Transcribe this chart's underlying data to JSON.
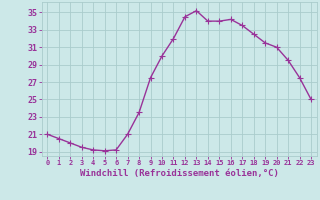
{
  "x": [
    0,
    1,
    2,
    3,
    4,
    5,
    6,
    7,
    8,
    9,
    10,
    11,
    12,
    13,
    14,
    15,
    16,
    17,
    18,
    19,
    20,
    21,
    22,
    23
  ],
  "y": [
    21.0,
    20.5,
    20.0,
    19.5,
    19.2,
    19.1,
    19.2,
    21.0,
    23.5,
    27.5,
    30.0,
    32.0,
    34.5,
    35.2,
    34.0,
    34.0,
    34.2,
    33.5,
    32.5,
    31.5,
    31.0,
    29.5,
    27.5,
    25.0
  ],
  "line_color": "#993399",
  "marker": "+",
  "marker_size": 4,
  "bg_color": "#cce8e8",
  "grid_color": "#aacccc",
  "xlabel": "Windchill (Refroidissement éolien,°C)",
  "ylabel_ticks": [
    19,
    21,
    23,
    25,
    27,
    29,
    31,
    33,
    35
  ],
  "xlim": [
    -0.5,
    23.5
  ],
  "ylim": [
    18.5,
    36.2
  ],
  "xtick_labels": [
    "0",
    "1",
    "2",
    "3",
    "4",
    "5",
    "6",
    "7",
    "8",
    "9",
    "10",
    "11",
    "12",
    "13",
    "14",
    "15",
    "16",
    "17",
    "18",
    "19",
    "20",
    "21",
    "22",
    "23"
  ],
  "font_color": "#993399",
  "linewidth": 1.0
}
